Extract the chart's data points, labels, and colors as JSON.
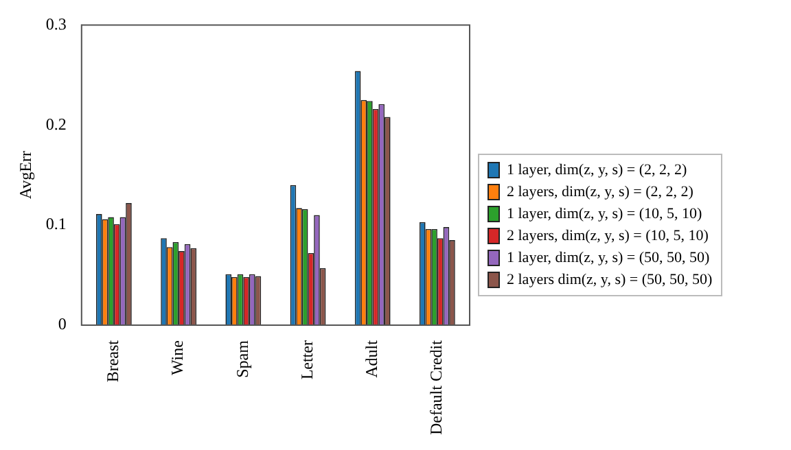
{
  "chart_data": {
    "type": "bar",
    "ylabel": "AvgErr",
    "categories": [
      "Breast",
      "Wine",
      "Spam",
      "Letter",
      "Adult",
      "Default Credit"
    ],
    "series": [
      {
        "name": "1 layer, dim(z, y, s) = (2, 2, 2)",
        "color": "#1f77b4",
        "values": [
          0.111,
          0.087,
          0.051,
          0.14,
          0.254,
          0.103
        ]
      },
      {
        "name": "2 layers, dim(z, y, s) = (2, 2, 2)",
        "color": "#ff7f0e",
        "values": [
          0.106,
          0.078,
          0.048,
          0.117,
          0.225,
          0.096
        ]
      },
      {
        "name": "1 layer, dim(z, y, s) = (10, 5, 10)",
        "color": "#2ca02c",
        "values": [
          0.108,
          0.083,
          0.051,
          0.116,
          0.224,
          0.096
        ]
      },
      {
        "name": "2 layers, dim(z, y, s) = (10, 5, 10)",
        "color": "#d62728",
        "values": [
          0.101,
          0.074,
          0.048,
          0.072,
          0.216,
          0.087
        ]
      },
      {
        "name": "1 layer, dim(z, y, s) = (50, 50, 50)",
        "color": "#9467bd",
        "values": [
          0.108,
          0.081,
          0.051,
          0.11,
          0.221,
          0.098
        ]
      },
      {
        "name": "2 layers dim(z, y, s) = (50, 50, 50)",
        "color": "#8c564b",
        "values": [
          0.122,
          0.077,
          0.049,
          0.057,
          0.208,
          0.085
        ]
      }
    ],
    "ylim": [
      0,
      0.3
    ],
    "yticks": [
      0,
      0.1,
      0.2,
      0.3
    ],
    "grid": false,
    "legend": "right"
  }
}
